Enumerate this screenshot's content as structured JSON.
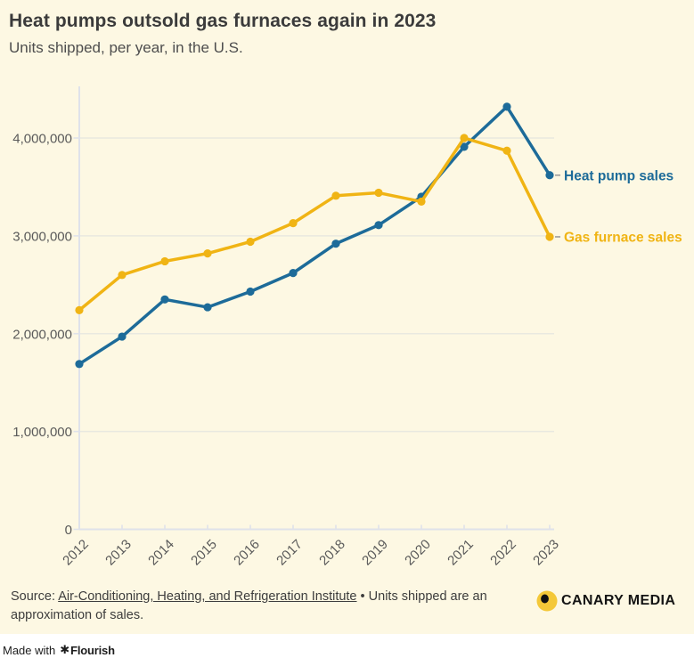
{
  "chart_data": {
    "type": "line",
    "title": "Heat pumps outsold gas furnaces again in 2023",
    "subtitle": "Units shipped, per year, in the U.S.",
    "x": [
      "2012",
      "2013",
      "2014",
      "2015",
      "2016",
      "2017",
      "2018",
      "2019",
      "2020",
      "2021",
      "2022",
      "2023"
    ],
    "series": [
      {
        "name": "Heat pump sales",
        "color": "#1d6b99",
        "values": [
          1690000,
          1970000,
          2350000,
          2270000,
          2430000,
          2620000,
          2920000,
          3110000,
          3400000,
          3910000,
          4320000,
          3620000
        ]
      },
      {
        "name": "Gas furnace sales",
        "color": "#f0b414",
        "values": [
          2240000,
          2600000,
          2740000,
          2820000,
          2940000,
          3130000,
          3410000,
          3440000,
          3350000,
          4000000,
          3870000,
          2990000
        ]
      }
    ],
    "xlabel": "",
    "ylabel": "",
    "ylim": [
      0,
      4530000
    ],
    "yticks": [
      0,
      1000000,
      2000000,
      3000000,
      4000000
    ],
    "ytick_labels": [
      "0",
      "1,000,000",
      "2,000,000",
      "3,000,000",
      "4,000,000"
    ],
    "grid": "horizontal",
    "legend_position": "line-end-labels"
  },
  "footer": {
    "source_prefix": "Source: ",
    "source_link": "Air-Conditioning, Heating, and Refrigeration Institute",
    "source_separator": " • ",
    "source_note": "Units shipped are an approximation of sales.",
    "brand": "CANARY MEDIA"
  },
  "attribution": {
    "made_with": "Made with",
    "flourish_icon": "✱",
    "flourish": "Flourish"
  },
  "colors": {
    "background": "#fdf8e3",
    "heat_pump": "#1d6b99",
    "gas_furnace": "#f0b414",
    "brand_yellow": "#f4c838",
    "axis": "#dfe2ea",
    "grid": "#e9e9e0",
    "tick_text": "#5a5a5a"
  }
}
